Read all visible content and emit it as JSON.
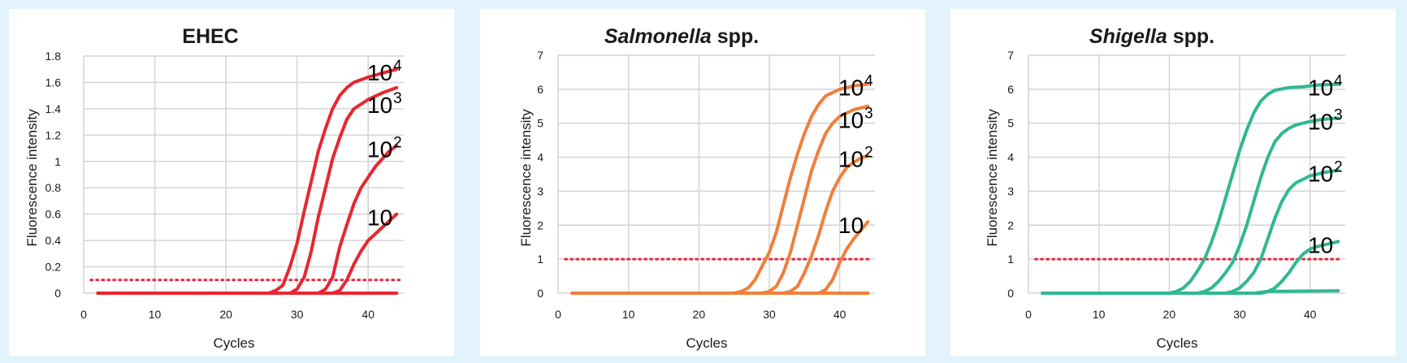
{
  "colors": {
    "background": "#e3f3fb",
    "panel": "#ffffff",
    "grid": "#d4d4d4",
    "threshold": "#e8283c"
  },
  "chart_data": [
    {
      "type": "line",
      "title": {
        "italic": "",
        "plain": "EHEC"
      },
      "xlabel": "Cycles",
      "ylabel": "Fluorescence intensity",
      "xlim": [
        0,
        45
      ],
      "ylim": [
        0,
        1.8
      ],
      "xticks": [
        0,
        10,
        20,
        30,
        40
      ],
      "yticks": [
        0,
        0.2,
        0.4,
        0.6,
        0.8,
        1,
        1.2,
        1.4,
        1.6,
        1.8
      ],
      "ytick_labels": [
        "0",
        "0.2",
        "0.4",
        "0.6",
        "0.8",
        "1",
        "1.2",
        "1.4",
        "1.6",
        "1.8"
      ],
      "grid": true,
      "color": "#e8262f",
      "threshold": 0.1,
      "series": [
        {
          "label_base": "10",
          "label_exp": "4",
          "points": [
            [
              2,
              0
            ],
            [
              26,
              0
            ],
            [
              27,
              0.02
            ],
            [
              28,
              0.06
            ],
            [
              29,
              0.2
            ],
            [
              30,
              0.38
            ],
            [
              31,
              0.62
            ],
            [
              32,
              0.85
            ],
            [
              33,
              1.08
            ],
            [
              34,
              1.25
            ],
            [
              35,
              1.4
            ],
            [
              36,
              1.5
            ],
            [
              37,
              1.56
            ],
            [
              38,
              1.6
            ],
            [
              40,
              1.64
            ],
            [
              42,
              1.67
            ],
            [
              44,
              1.7
            ]
          ]
        },
        {
          "label_base": "10",
          "label_exp": "3",
          "points": [
            [
              2,
              0
            ],
            [
              29,
              0
            ],
            [
              30,
              0.03
            ],
            [
              31,
              0.12
            ],
            [
              32,
              0.32
            ],
            [
              33,
              0.58
            ],
            [
              34,
              0.8
            ],
            [
              35,
              1.02
            ],
            [
              36,
              1.18
            ],
            [
              37,
              1.32
            ],
            [
              38,
              1.4
            ],
            [
              40,
              1.47
            ],
            [
              42,
              1.52
            ],
            [
              44,
              1.56
            ]
          ]
        },
        {
          "label_base": "10",
          "label_exp": "2",
          "points": [
            [
              2,
              0
            ],
            [
              33,
              0
            ],
            [
              34,
              0.03
            ],
            [
              35,
              0.12
            ],
            [
              36,
              0.35
            ],
            [
              37,
              0.52
            ],
            [
              38,
              0.68
            ],
            [
              39,
              0.8
            ],
            [
              40,
              0.88
            ],
            [
              41,
              0.96
            ],
            [
              42,
              1.02
            ],
            [
              43,
              1.08
            ],
            [
              44,
              1.12
            ]
          ]
        },
        {
          "label_base": "10",
          "label_exp": "",
          "points": [
            [
              2,
              0
            ],
            [
              35,
              0
            ],
            [
              36,
              0.02
            ],
            [
              37,
              0.1
            ],
            [
              38,
              0.22
            ],
            [
              39,
              0.32
            ],
            [
              40,
              0.4
            ],
            [
              41,
              0.45
            ],
            [
              42,
              0.5
            ],
            [
              43,
              0.55
            ],
            [
              44,
              0.6
            ]
          ]
        },
        {
          "label_base": "",
          "label_exp": "",
          "points": [
            [
              2,
              0
            ],
            [
              44,
              0
            ]
          ]
        }
      ]
    },
    {
      "type": "line",
      "title": {
        "italic": "Salmonella",
        "plain": " spp."
      },
      "xlabel": "Cycles",
      "ylabel": "Fluorescence intensity",
      "xlim": [
        0,
        45
      ],
      "ylim": [
        0,
        7
      ],
      "xticks": [
        0,
        10,
        20,
        30,
        40
      ],
      "yticks": [
        0,
        1,
        2,
        3,
        4,
        5,
        6,
        7
      ],
      "ytick_labels": [
        "0",
        "1",
        "2",
        "3",
        "4",
        "5",
        "6",
        "7"
      ],
      "grid": true,
      "color": "#f07f3a",
      "threshold": 1,
      "series": [
        {
          "label_base": "10",
          "label_exp": "4",
          "points": [
            [
              2,
              0
            ],
            [
              25,
              0
            ],
            [
              26,
              0.05
            ],
            [
              27,
              0.15
            ],
            [
              28,
              0.4
            ],
            [
              29,
              0.8
            ],
            [
              30,
              1.2
            ],
            [
              31,
              1.8
            ],
            [
              32,
              2.6
            ],
            [
              33,
              3.4
            ],
            [
              34,
              4.1
            ],
            [
              35,
              4.7
            ],
            [
              36,
              5.2
            ],
            [
              37,
              5.55
            ],
            [
              38,
              5.8
            ],
            [
              40,
              6.0
            ],
            [
              42,
              6.1
            ],
            [
              44,
              6.15
            ]
          ]
        },
        {
          "label_base": "10",
          "label_exp": "3",
          "points": [
            [
              2,
              0
            ],
            [
              29,
              0
            ],
            [
              30,
              0.05
            ],
            [
              31,
              0.2
            ],
            [
              32,
              0.6
            ],
            [
              33,
              1.2
            ],
            [
              34,
              2.0
            ],
            [
              35,
              2.8
            ],
            [
              36,
              3.6
            ],
            [
              37,
              4.2
            ],
            [
              38,
              4.7
            ],
            [
              39,
              5.0
            ],
            [
              40,
              5.2
            ],
            [
              42,
              5.4
            ],
            [
              44,
              5.5
            ]
          ]
        },
        {
          "label_base": "10",
          "label_exp": "2",
          "points": [
            [
              2,
              0
            ],
            [
              32,
              0
            ],
            [
              33,
              0.05
            ],
            [
              34,
              0.2
            ],
            [
              35,
              0.6
            ],
            [
              36,
              1.1
            ],
            [
              37,
              1.7
            ],
            [
              38,
              2.4
            ],
            [
              39,
              3.0
            ],
            [
              40,
              3.4
            ],
            [
              41,
              3.7
            ],
            [
              42,
              3.85
            ],
            [
              43,
              3.97
            ],
            [
              44,
              4.05
            ]
          ]
        },
        {
          "label_base": "10",
          "label_exp": "",
          "points": [
            [
              2,
              0
            ],
            [
              37,
              0
            ],
            [
              38,
              0.1
            ],
            [
              39,
              0.4
            ],
            [
              40,
              0.9
            ],
            [
              41,
              1.3
            ],
            [
              42,
              1.6
            ],
            [
              43,
              1.85
            ],
            [
              44,
              2.1
            ]
          ]
        },
        {
          "label_base": "",
          "label_exp": "",
          "points": [
            [
              2,
              0
            ],
            [
              44,
              0
            ]
          ]
        }
      ]
    },
    {
      "type": "line",
      "title": {
        "italic": "Shigella",
        "plain": " spp."
      },
      "xlabel": "Cycles",
      "ylabel": "Fluorescence intensity",
      "xlim": [
        0,
        45
      ],
      "ylim": [
        0,
        7
      ],
      "xticks": [
        0,
        10,
        20,
        30,
        40
      ],
      "yticks": [
        0,
        1,
        2,
        3,
        4,
        5,
        6,
        7
      ],
      "ytick_labels": [
        "0",
        "1",
        "2",
        "3",
        "4",
        "5",
        "6",
        "7"
      ],
      "grid": true,
      "color": "#2fb892",
      "threshold": 1,
      "series": [
        {
          "label_base": "10",
          "label_exp": "4",
          "points": [
            [
              2,
              0
            ],
            [
              20,
              0
            ],
            [
              21,
              0.05
            ],
            [
              22,
              0.15
            ],
            [
              23,
              0.35
            ],
            [
              24,
              0.65
            ],
            [
              25,
              1.0
            ],
            [
              26,
              1.5
            ],
            [
              27,
              2.1
            ],
            [
              28,
              2.8
            ],
            [
              29,
              3.5
            ],
            [
              30,
              4.2
            ],
            [
              31,
              4.8
            ],
            [
              32,
              5.3
            ],
            [
              33,
              5.65
            ],
            [
              34,
              5.85
            ],
            [
              35,
              5.97
            ],
            [
              37,
              6.05
            ],
            [
              39,
              6.07
            ],
            [
              41,
              6.12
            ],
            [
              44,
              6.15
            ]
          ]
        },
        {
          "label_base": "10",
          "label_exp": "3",
          "points": [
            [
              2,
              0
            ],
            [
              24,
              0
            ],
            [
              25,
              0.05
            ],
            [
              26,
              0.15
            ],
            [
              27,
              0.35
            ],
            [
              28,
              0.6
            ],
            [
              29,
              0.9
            ],
            [
              30,
              1.4
            ],
            [
              31,
              2.0
            ],
            [
              32,
              2.7
            ],
            [
              33,
              3.4
            ],
            [
              34,
              4.0
            ],
            [
              35,
              4.45
            ],
            [
              36,
              4.7
            ],
            [
              37,
              4.85
            ],
            [
              38,
              4.95
            ],
            [
              40,
              5.05
            ],
            [
              42,
              5.12
            ],
            [
              44,
              5.15
            ]
          ]
        },
        {
          "label_base": "10",
          "label_exp": "2",
          "points": [
            [
              2,
              0
            ],
            [
              28,
              0
            ],
            [
              29,
              0.05
            ],
            [
              30,
              0.15
            ],
            [
              31,
              0.35
            ],
            [
              32,
              0.6
            ],
            [
              33,
              1.0
            ],
            [
              34,
              1.6
            ],
            [
              35,
              2.2
            ],
            [
              36,
              2.7
            ],
            [
              37,
              3.05
            ],
            [
              38,
              3.25
            ],
            [
              39,
              3.35
            ],
            [
              40,
              3.45
            ],
            [
              42,
              3.55
            ],
            [
              44,
              3.62
            ]
          ]
        },
        {
          "label_base": "10",
          "label_exp": "",
          "points": [
            [
              2,
              0
            ],
            [
              33,
              0
            ],
            [
              34,
              0.05
            ],
            [
              35,
              0.15
            ],
            [
              36,
              0.35
            ],
            [
              37,
              0.6
            ],
            [
              38,
              0.9
            ],
            [
              39,
              1.15
            ],
            [
              40,
              1.3
            ],
            [
              41,
              1.37
            ],
            [
              42,
              1.42
            ],
            [
              43,
              1.47
            ],
            [
              44,
              1.52
            ]
          ]
        },
        {
          "label_base": "",
          "label_exp": "",
          "points": [
            [
              2,
              0
            ],
            [
              32,
              0
            ],
            [
              34,
              0.05
            ],
            [
              44,
              0.07
            ]
          ]
        }
      ]
    }
  ]
}
